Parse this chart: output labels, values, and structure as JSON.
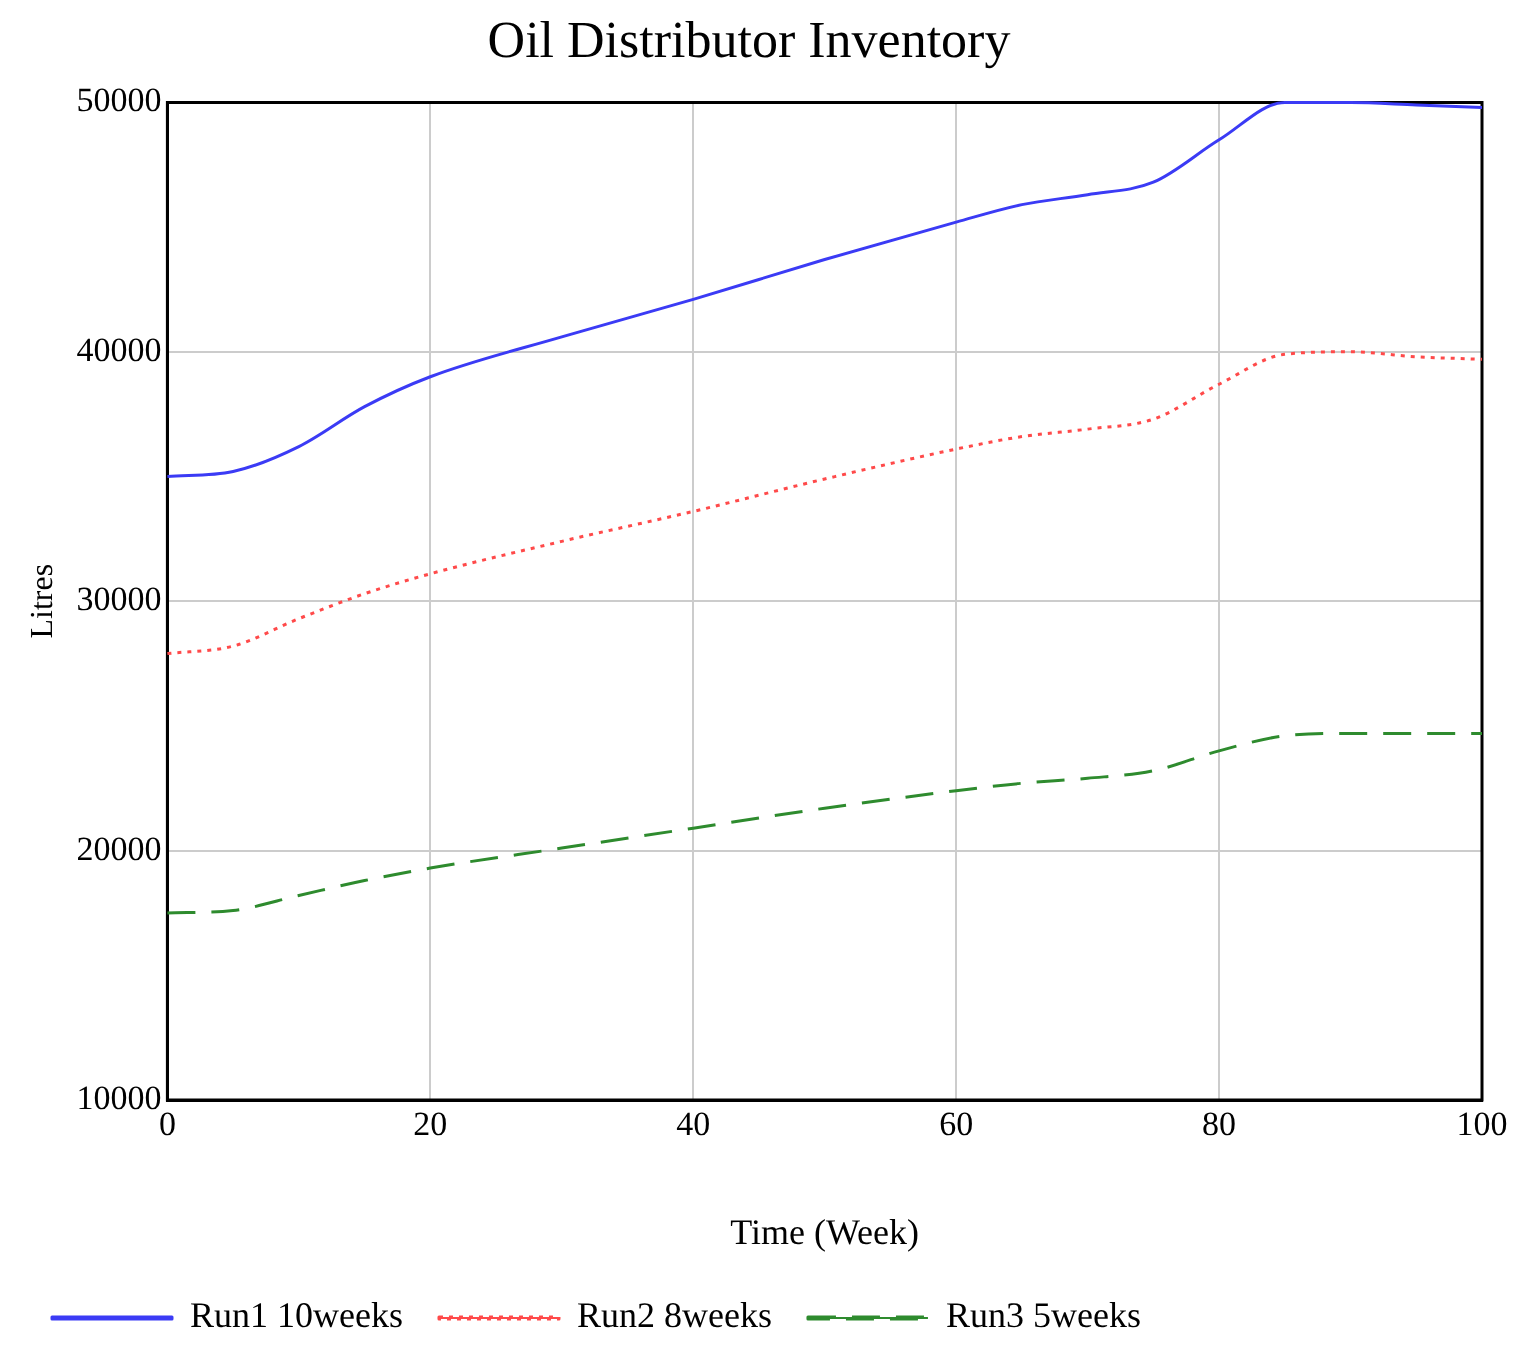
{
  "chart_data": {
    "type": "line",
    "title": "Oil Distributor Inventory",
    "xlabel": "Time (Week)",
    "ylabel": "Litres",
    "x": [
      0,
      5,
      10,
      15,
      20,
      30,
      40,
      50,
      60,
      65,
      70,
      75,
      80,
      85,
      90,
      95,
      100
    ],
    "series": [
      {
        "name": "Run1 10weeks",
        "color": "#3b3bf5",
        "line_style": "solid",
        "values": [
          35000,
          35200,
          36200,
          37800,
          39000,
          40600,
          42100,
          43700,
          45200,
          45900,
          46300,
          46800,
          48500,
          50000,
          50000,
          49900,
          49800
        ]
      },
      {
        "name": "Run2 8weeks",
        "color": "#ff4a4a",
        "line_style": "dotted",
        "values": [
          27900,
          28200,
          29300,
          30300,
          31100,
          32400,
          33600,
          34900,
          36100,
          36600,
          36900,
          37300,
          38700,
          39900,
          40000,
          39800,
          39700
        ]
      },
      {
        "name": "Run3 5weeks",
        "color": "#2e8b2e",
        "line_style": "dashed",
        "values": [
          17500,
          17600,
          18200,
          18800,
          19300,
          20100,
          20900,
          21700,
          22400,
          22700,
          22900,
          23200,
          24000,
          24600,
          24700,
          24700,
          24700
        ]
      }
    ],
    "xlim": [
      0,
      100
    ],
    "xticks": [
      0,
      20,
      40,
      60,
      80,
      100
    ],
    "ylim": [
      10000,
      50000
    ],
    "yticks": [
      10000,
      20000,
      30000,
      40000,
      50000
    ],
    "grid": true,
    "legend": "bottom",
    "marker": "none"
  }
}
